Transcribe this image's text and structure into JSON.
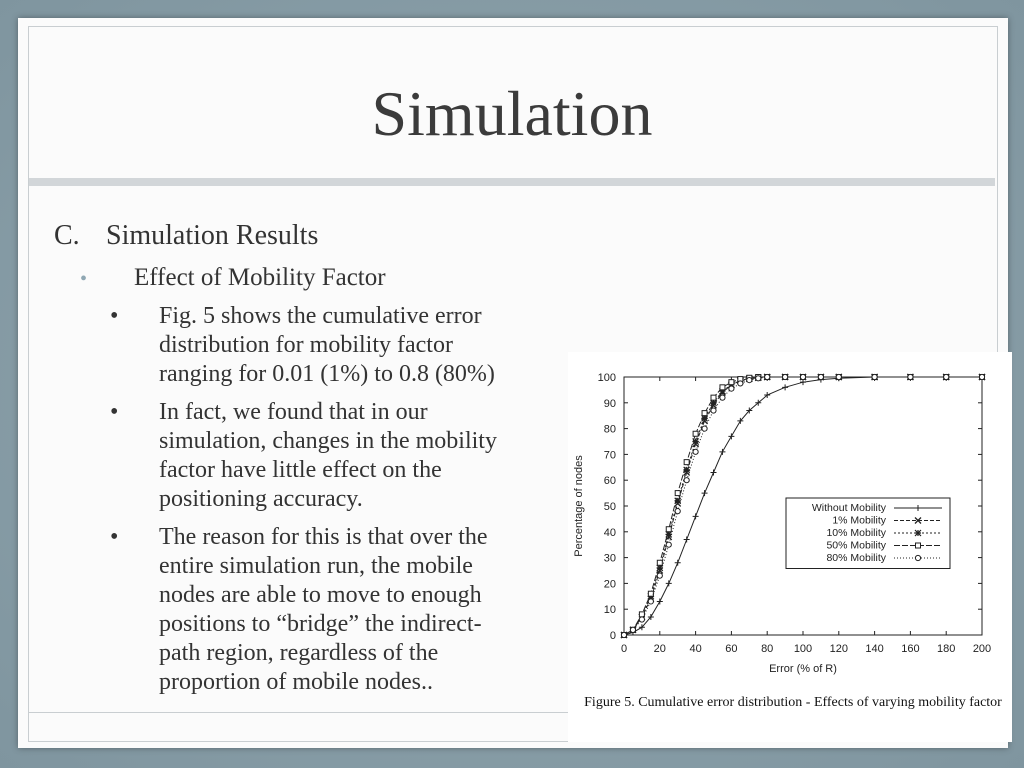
{
  "slide": {
    "title": "Simulation",
    "section_num": "C.",
    "section_label": "Simulation Results",
    "sub_bullet": "•",
    "sub_heading": "Effect of Mobility Factor",
    "bullets": [
      {
        "marker": "•",
        "text": "Fig. 5 shows the cumulative error\ndistribution for mobility factor\nranging for 0.01 (1%) to 0.8 (80%)"
      },
      {
        "marker": "•",
        "text": "In fact, we found that in our\nsimulation, changes in the mobility\nfactor have little effect on the\npositioning accuracy."
      },
      {
        "marker": "•",
        "text": "The reason for this is that over the\nentire simulation run, the mobile\nnodes are able to move to enough\npositions to “bridge” the indirect-\npath region, regardless of the\nproportion of mobile nodes.."
      }
    ]
  },
  "figure": {
    "caption": "Figure 5.    Cumulative error distribution - Effects of varying mobility factor"
  },
  "chart_data": {
    "type": "line",
    "title": "",
    "xlabel": "Error (% of R)",
    "ylabel": "Percentage of nodes",
    "xlim": [
      0,
      200
    ],
    "ylim": [
      0,
      100
    ],
    "xticks": [
      0,
      20,
      40,
      60,
      80,
      100,
      120,
      140,
      160,
      180,
      200
    ],
    "yticks": [
      0,
      10,
      20,
      30,
      40,
      50,
      60,
      70,
      80,
      90,
      100
    ],
    "grid": false,
    "legend_position": "center-right",
    "x": [
      0,
      5,
      10,
      15,
      20,
      25,
      30,
      35,
      40,
      45,
      50,
      55,
      60,
      65,
      70,
      75,
      80,
      90,
      100,
      110,
      120,
      140,
      160,
      180,
      200
    ],
    "series": [
      {
        "name": "Without Mobility",
        "marker": "+",
        "values": [
          0,
          1,
          3,
          7,
          13,
          20,
          28,
          37,
          46,
          55,
          63,
          71,
          77,
          83,
          87,
          90,
          93,
          96,
          98,
          99,
          99.5,
          100,
          100,
          100,
          100
        ]
      },
      {
        "name": "1% Mobility",
        "marker": "x",
        "values": [
          0,
          2,
          7,
          14,
          25,
          38,
          51,
          63,
          74,
          83,
          89,
          94,
          97,
          98.5,
          99.3,
          99.7,
          100,
          100,
          100,
          100,
          100,
          100,
          100,
          100,
          100
        ]
      },
      {
        "name": "10% Mobility",
        "marker": "*",
        "values": [
          0,
          2,
          7,
          15,
          26,
          39,
          52,
          64,
          75,
          84,
          90,
          94.5,
          97,
          98.7,
          99.4,
          99.8,
          100,
          100,
          100,
          100,
          100,
          100,
          100,
          100,
          100
        ]
      },
      {
        "name": "50% Mobility",
        "marker": "square",
        "values": [
          0,
          2,
          8,
          16,
          28,
          41,
          55,
          67,
          78,
          86,
          92,
          96,
          98,
          99.2,
          99.7,
          100,
          100,
          100,
          100,
          100,
          100,
          100,
          100,
          100,
          100
        ]
      },
      {
        "name": "80% Mobility",
        "marker": "circle",
        "values": [
          0,
          2,
          6,
          13,
          23,
          35,
          48,
          60,
          71,
          80,
          87,
          92,
          95.5,
          97.5,
          98.8,
          99.5,
          100,
          100,
          100,
          100,
          100,
          100,
          100,
          100,
          100
        ]
      }
    ]
  }
}
